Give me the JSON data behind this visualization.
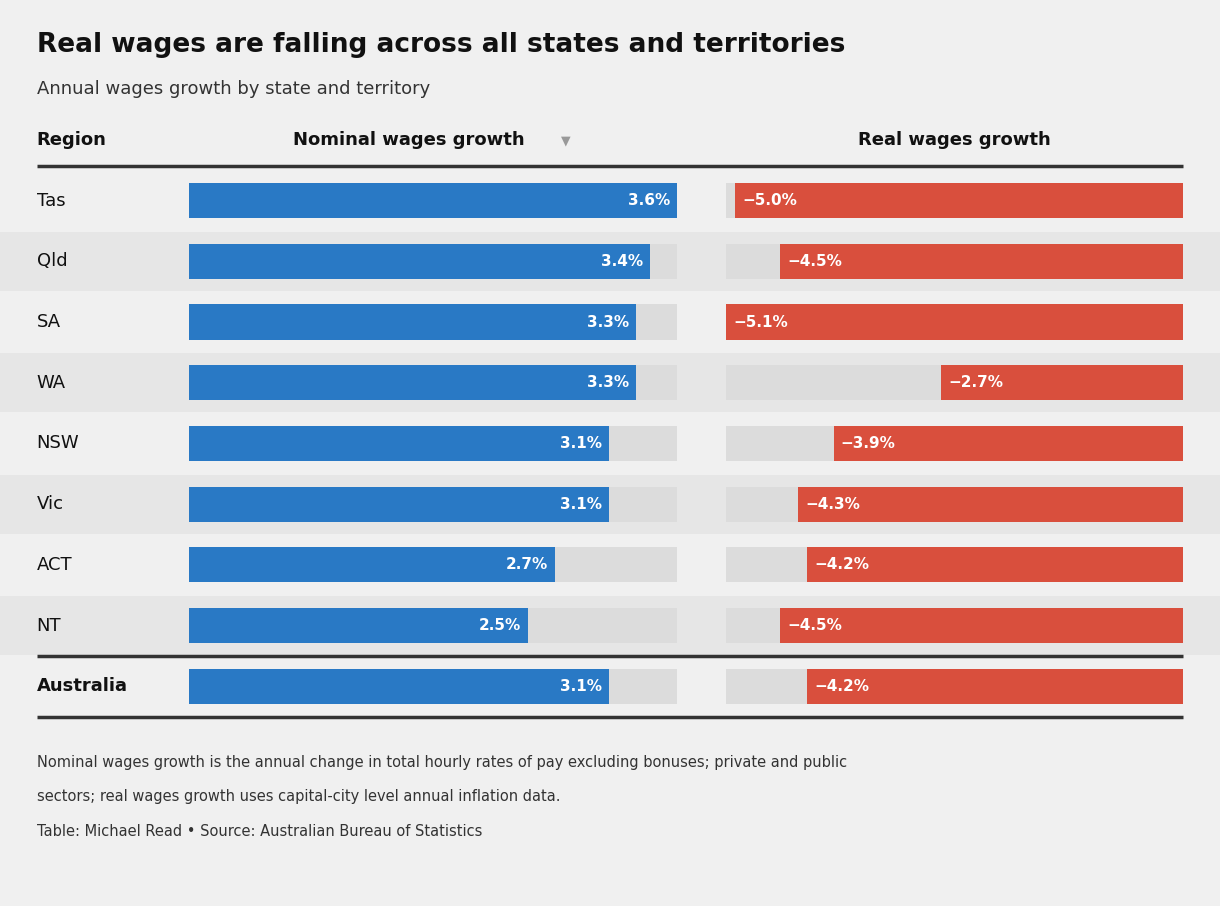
{
  "title": "Real wages are falling across all states and territories",
  "subtitle": "Annual wages growth by state and territory",
  "col_header_region": "Region",
  "col_header_nominal": "Nominal wages growth",
  "col_header_real": "Real wages growth",
  "regions": [
    "Tas",
    "Qld",
    "SA",
    "WA",
    "NSW",
    "Vic",
    "ACT",
    "NT"
  ],
  "australia_label": "Australia",
  "nominal": [
    3.6,
    3.4,
    3.3,
    3.3,
    3.1,
    3.1,
    2.7,
    2.5
  ],
  "real": [
    -5.0,
    -4.5,
    -5.1,
    -2.7,
    -3.9,
    -4.3,
    -4.2,
    -4.5
  ],
  "australia_nominal": 3.1,
  "australia_real": -4.2,
  "nominal_max": 3.6,
  "real_min": -5.1,
  "blue_color": "#2979c5",
  "red_color": "#d94f3d",
  "light_gray": "#dcdcdc",
  "bg_color": "#f0f0f0",
  "row_bg_odd": "#f0f0f0",
  "row_bg_even": "#e6e6e6",
  "header_line_color": "#333333",
  "footer_line_color": "#333333",
  "footnote1": "Nominal wages growth is the annual change in total hourly rates of pay excluding bonuses; private and public",
  "footnote2": "sectors; real wages growth uses capital-city level annual inflation data.",
  "footnote3": "Table: Michael Read • Source: Australian Bureau of Statistics"
}
